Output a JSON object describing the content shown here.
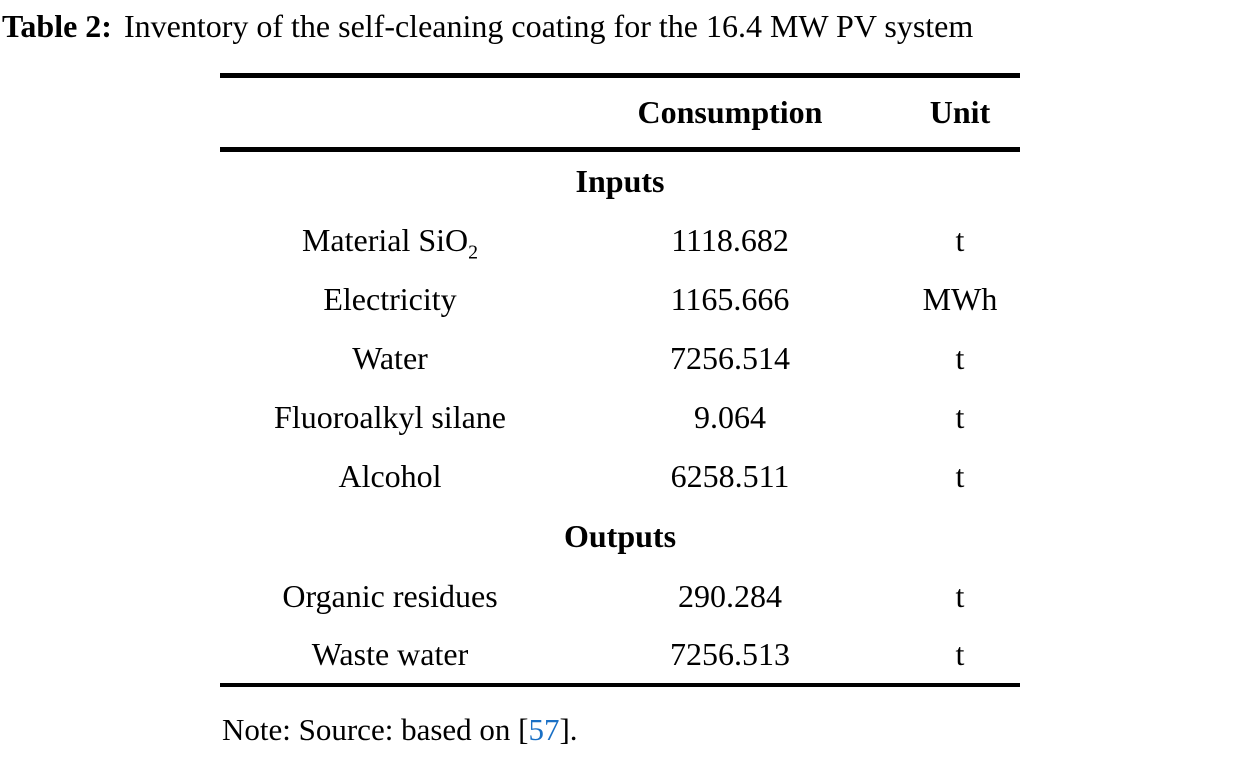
{
  "caption": {
    "label": "Table 2:",
    "text": "Inventory of the self-cleaning coating for the 16.4 MW PV system"
  },
  "table": {
    "header": {
      "consumption": "Consumption",
      "unit": "Unit"
    },
    "sections": [
      {
        "name": "Inputs",
        "rows": [
          {
            "label": "Material SiO",
            "label_sub": "2",
            "consumption": "1118.682",
            "unit": "t"
          },
          {
            "label": "Electricity",
            "consumption": "1165.666",
            "unit": "MWh"
          },
          {
            "label": "Water",
            "consumption": "7256.514",
            "unit": "t"
          },
          {
            "label": "Fluoroalkyl silane",
            "consumption": "9.064",
            "unit": "t"
          },
          {
            "label": "Alcohol",
            "consumption": "6258.511",
            "unit": "t"
          }
        ]
      },
      {
        "name": "Outputs",
        "rows": [
          {
            "label": "Organic residues",
            "consumption": "290.284",
            "unit": "t"
          },
          {
            "label": "Waste water",
            "consumption": "7256.513",
            "unit": "t"
          }
        ]
      }
    ]
  },
  "note": {
    "prefix": "Note: Source: based on [",
    "citation": "57",
    "suffix": "]."
  },
  "colors": {
    "text": "#000000",
    "citation_link": "#1a70c5",
    "background": "#ffffff",
    "rule": "#000000"
  }
}
